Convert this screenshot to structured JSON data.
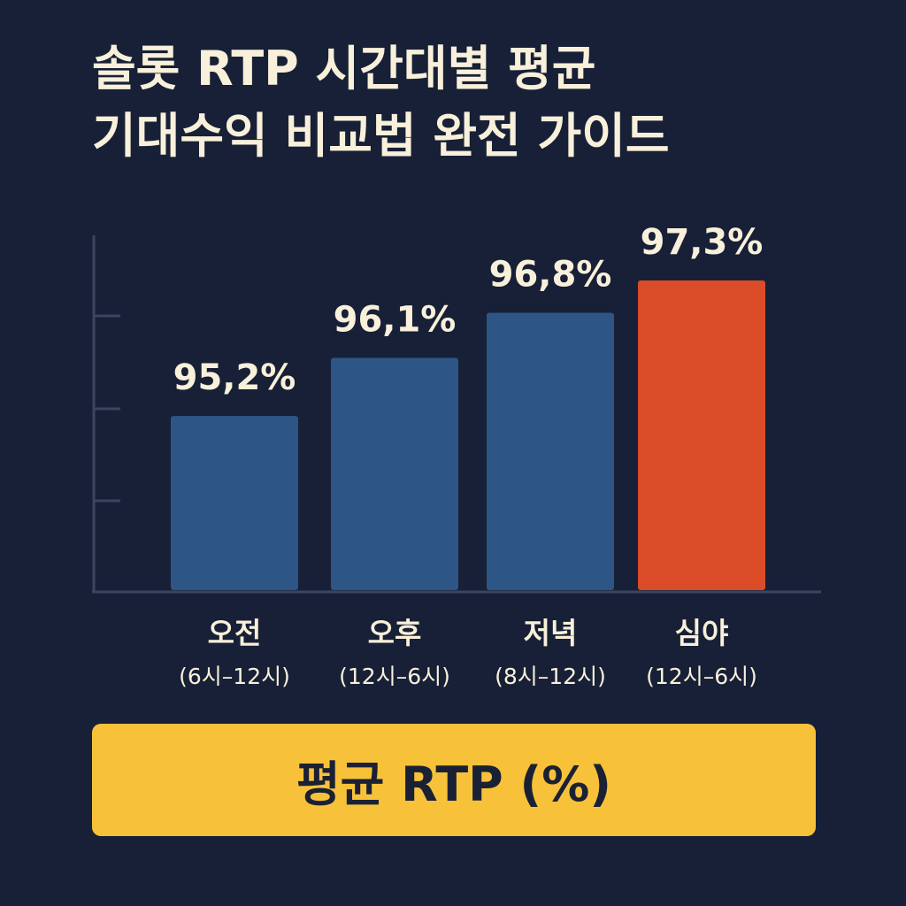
{
  "title_lines": [
    "솔롯 RTP 시간대별 평균",
    "기대수익 비교법 완전 가이드"
  ],
  "legend_label": "평균 RTP (%)",
  "colors": {
    "background": "#172036",
    "bar_default": "#2d5585",
    "bar_highlight": "#d94c27",
    "legend_bg": "#f7c23a",
    "text": "#f8f0da",
    "axis": "#3a4660"
  },
  "chart_data": {
    "type": "bar",
    "categories": [
      "오전",
      "오후",
      "저녁",
      "심야"
    ],
    "category_sublabels": [
      "(6시–12시)",
      "(12시–6시)",
      "(8시–12시)",
      "(12시–6시)"
    ],
    "values": [
      95.2,
      96.1,
      96.8,
      97.3
    ],
    "value_labels": [
      "95,2%",
      "96,1%",
      "96,8%",
      "97,3%"
    ],
    "highlight_index": 3,
    "ylim": [
      92.5,
      98.0
    ],
    "grid": false,
    "legend": "bottom"
  }
}
